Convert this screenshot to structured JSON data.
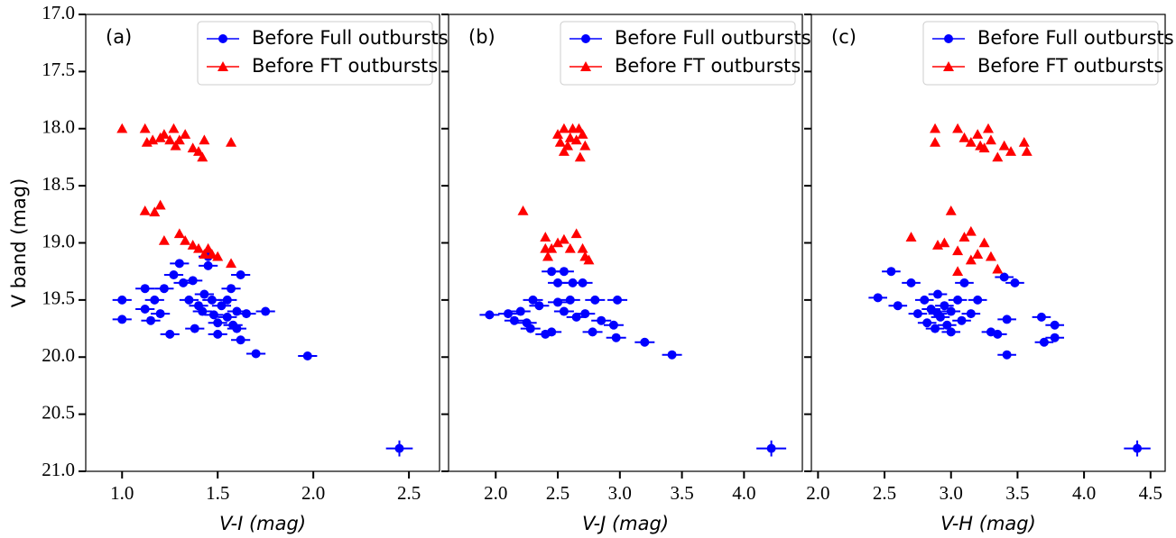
{
  "chart_data": [
    {
      "type": "scatter",
      "panel_label": "(a)",
      "xlabel": "V-I (mag)",
      "ylabel": "V band (mag)",
      "xlim": [
        0.81,
        2.66
      ],
      "ylim": [
        21.0,
        17.0
      ],
      "xticks": [
        {
          "value": 1.0,
          "label": "1.0"
        },
        1.5,
        {
          "value": 2.0,
          "label": "2.0"
        },
        2.5
      ],
      "yticks": [
        {
          "value": 17.0,
          "label": "17.0"
        },
        17.5,
        {
          "value": 18.0,
          "label": "18.0"
        },
        18.5,
        {
          "value": 19.0,
          "label": "19.0"
        },
        19.5,
        {
          "value": 20.0,
          "label": "20.0"
        },
        20.5,
        {
          "value": 21.0,
          "label": "21.0"
        }
      ],
      "ytick_labels": true,
      "legend": "upper right",
      "series": [
        {
          "name": "Before Full outbursts",
          "color": "#0000ff",
          "marker": "circle",
          "xerr": 0.05,
          "x": [
            1.0,
            1.0,
            1.12,
            1.12,
            1.15,
            1.17,
            1.2,
            1.22,
            1.25,
            1.27,
            1.3,
            1.32,
            1.35,
            1.37,
            1.38,
            1.4,
            1.42,
            1.45,
            1.45,
            1.47,
            1.48,
            1.5,
            1.5,
            1.52,
            1.55,
            1.57,
            1.58,
            1.6,
            1.62,
            1.62,
            1.65,
            1.7,
            1.75,
            1.97,
            1.55,
            1.43,
            1.6
          ],
          "y": [
            19.5,
            19.67,
            19.4,
            19.58,
            19.68,
            19.5,
            19.62,
            19.4,
            19.8,
            19.28,
            19.18,
            19.35,
            19.5,
            19.33,
            19.75,
            19.55,
            19.6,
            19.2,
            19.12,
            19.5,
            19.63,
            19.7,
            19.8,
            19.55,
            19.65,
            19.4,
            19.72,
            19.75,
            19.28,
            19.85,
            19.62,
            19.97,
            19.6,
            19.99,
            19.5,
            19.45,
            19.6
          ]
        },
        {
          "name": "Before FT outbursts",
          "color": "#ff0000",
          "marker": "triangle",
          "x": [
            1.0,
            1.12,
            1.13,
            1.16,
            1.2,
            1.22,
            1.25,
            1.27,
            1.28,
            1.3,
            1.33,
            1.37,
            1.4,
            1.42,
            1.43,
            1.57,
            1.12,
            1.17,
            1.2,
            1.22,
            1.3,
            1.33,
            1.37,
            1.4,
            1.45,
            1.47,
            1.5,
            1.57,
            1.43
          ],
          "y": [
            18.0,
            18.0,
            18.12,
            18.1,
            18.08,
            18.05,
            18.1,
            18.0,
            18.15,
            18.1,
            18.05,
            18.17,
            18.2,
            18.25,
            18.1,
            18.12,
            18.72,
            18.73,
            18.67,
            18.98,
            18.92,
            18.98,
            19.02,
            19.05,
            19.05,
            19.1,
            19.12,
            19.18,
            19.1
          ]
        }
      ],
      "error_bar": {
        "x": 2.45,
        "y": 20.8,
        "xerr": 0.07,
        "yerr": 0.07
      }
    },
    {
      "type": "scatter",
      "panel_label": "(b)",
      "xlabel": "V-J (mag)",
      "xlim": [
        1.62,
        4.47
      ],
      "ylim": [
        21.0,
        17.0
      ],
      "xticks": [
        {
          "value": 2.0,
          "label": "2.0"
        },
        2.5,
        {
          "value": 3.0,
          "label": "3.0"
        },
        3.5,
        {
          "value": 4.0,
          "label": "4.0"
        }
      ],
      "yticks": [
        17.0,
        17.5,
        18.0,
        18.5,
        19.0,
        19.5,
        20.0,
        20.5,
        21.0
      ],
      "ytick_labels": false,
      "legend": "upper right",
      "series": [
        {
          "name": "Before Full outbursts",
          "color": "#0000ff",
          "marker": "circle",
          "xerr": 0.08,
          "x": [
            1.95,
            2.1,
            2.15,
            2.2,
            2.25,
            2.28,
            2.3,
            2.35,
            2.4,
            2.45,
            2.45,
            2.5,
            2.5,
            2.55,
            2.6,
            2.62,
            2.65,
            2.7,
            2.72,
            2.78,
            2.8,
            2.85,
            2.95,
            2.97,
            2.98,
            3.2,
            3.42,
            2.55
          ],
          "y": [
            19.63,
            19.62,
            19.68,
            19.6,
            19.7,
            19.75,
            19.5,
            19.55,
            19.8,
            19.25,
            19.78,
            19.35,
            19.52,
            19.6,
            19.5,
            19.35,
            19.65,
            19.35,
            19.62,
            19.78,
            19.5,
            19.68,
            19.72,
            19.83,
            19.5,
            19.87,
            19.98,
            19.25
          ]
        },
        {
          "name": "Before FT outbursts",
          "color": "#ff0000",
          "marker": "triangle",
          "x": [
            2.5,
            2.52,
            2.55,
            2.58,
            2.6,
            2.62,
            2.65,
            2.68,
            2.7,
            2.72,
            2.55,
            2.67,
            2.22,
            2.4,
            2.45,
            2.5,
            2.55,
            2.6,
            2.65,
            2.7,
            2.72,
            2.75,
            2.4,
            2.42
          ],
          "y": [
            18.05,
            18.12,
            18.0,
            18.15,
            18.08,
            18.0,
            18.1,
            18.25,
            18.05,
            18.15,
            18.2,
            18.0,
            18.72,
            18.95,
            19.05,
            19.0,
            18.97,
            19.05,
            18.92,
            19.05,
            19.12,
            19.15,
            19.05,
            19.12
          ]
        }
      ],
      "error_bar": {
        "x": 4.22,
        "y": 20.8,
        "xerr": 0.12,
        "yerr": 0.07
      }
    },
    {
      "type": "scatter",
      "panel_label": "(c)",
      "xlabel": "V-H (mag)",
      "xlim": [
        1.95,
        4.61
      ],
      "ylim": [
        21.0,
        17.0
      ],
      "xticks": [
        {
          "value": 2.0,
          "label": "2.0"
        },
        2.5,
        {
          "value": 3.0,
          "label": "3.0"
        },
        3.5,
        {
          "value": 4.0,
          "label": "4.0"
        },
        4.5
      ],
      "yticks": [
        17.0,
        17.5,
        18.0,
        18.5,
        19.0,
        19.5,
        20.0,
        20.5,
        21.0
      ],
      "ytick_labels": false,
      "legend": "upper right",
      "series": [
        {
          "name": "Before Full outbursts",
          "color": "#0000ff",
          "marker": "circle",
          "xerr": 0.07,
          "x": [
            2.45,
            2.55,
            2.6,
            2.7,
            2.75,
            2.8,
            2.82,
            2.85,
            2.88,
            2.9,
            2.92,
            2.95,
            2.97,
            3.0,
            3.0,
            3.05,
            3.08,
            3.1,
            3.15,
            3.2,
            3.3,
            3.35,
            3.4,
            3.42,
            3.42,
            3.48,
            3.68,
            3.7,
            3.78,
            3.78,
            2.9
          ],
          "y": [
            19.48,
            19.25,
            19.55,
            19.35,
            19.62,
            19.5,
            19.7,
            19.58,
            19.75,
            19.45,
            19.65,
            19.55,
            19.72,
            19.6,
            19.78,
            19.5,
            19.68,
            19.35,
            19.62,
            19.5,
            19.78,
            19.8,
            19.3,
            19.67,
            19.98,
            19.35,
            19.65,
            19.87,
            19.72,
            19.83,
            19.62
          ]
        },
        {
          "name": "Before FT outbursts",
          "color": "#ff0000",
          "marker": "triangle",
          "x": [
            2.88,
            2.88,
            3.05,
            3.1,
            3.15,
            3.2,
            3.22,
            3.28,
            3.3,
            3.35,
            3.4,
            3.45,
            3.55,
            3.57,
            3.25,
            2.7,
            2.9,
            2.95,
            3.0,
            3.05,
            3.1,
            3.15,
            3.2,
            3.25,
            3.05,
            3.3,
            3.35,
            3.15
          ],
          "y": [
            18.0,
            18.12,
            18.0,
            18.08,
            18.12,
            18.05,
            18.15,
            18.0,
            18.1,
            18.25,
            18.15,
            18.2,
            18.12,
            18.2,
            18.17,
            18.95,
            19.02,
            19.0,
            18.72,
            19.07,
            18.95,
            18.9,
            19.1,
            19.0,
            19.25,
            19.12,
            19.23,
            19.15
          ]
        }
      ],
      "error_bar": {
        "x": 4.4,
        "y": 20.8,
        "xerr": 0.1,
        "yerr": 0.07
      }
    }
  ]
}
